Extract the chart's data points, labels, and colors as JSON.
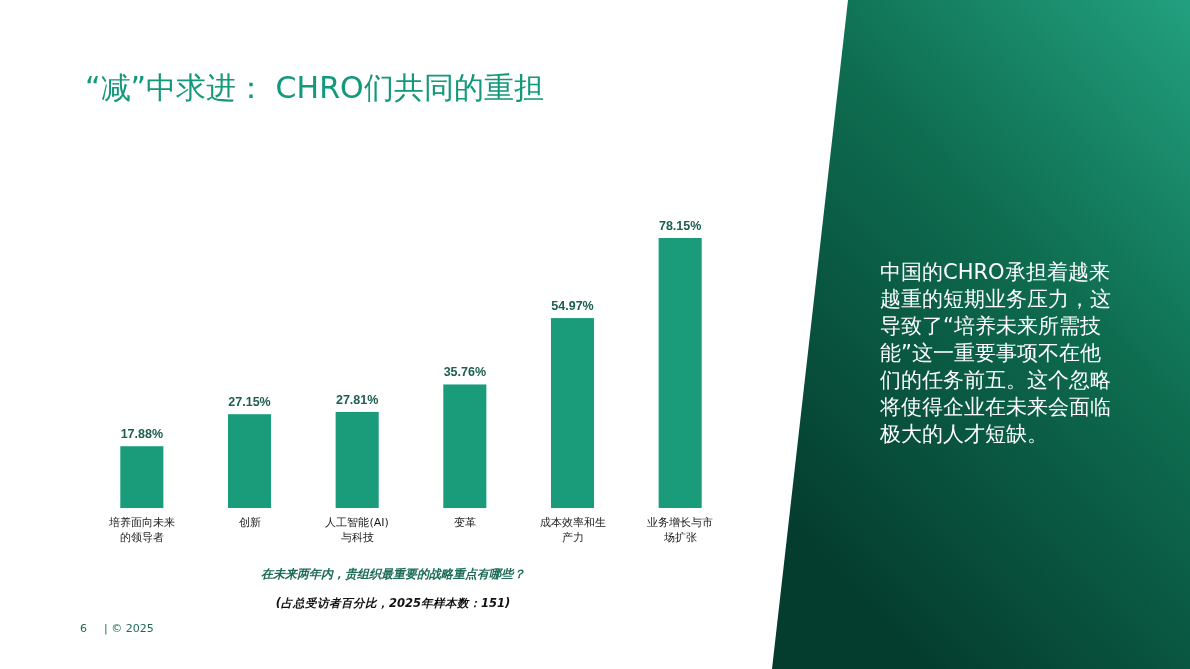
{
  "chart_data": {
    "type": "bar",
    "title": "“减”中求进： CHRO们共同的重担",
    "categories": [
      "培养面向未来的领导者",
      "创新",
      "人工智能(AI)与科技",
      "变革",
      "成本效率和生产力",
      "业务增长与市场扩张"
    ],
    "values": [
      17.88,
      27.15,
      27.81,
      35.76,
      54.97,
      78.15
    ],
    "value_labels": [
      "17.88%",
      "27.15%",
      "27.81%",
      "35.76%",
      "54.97%",
      "78.15%"
    ],
    "color": "#1a9c7b",
    "annotations": [
      "在未来两年内，贵组织最重要的战略重点有哪些？",
      "(占总受访者百分比，2025年样本数：151)",
      "中国的CHRO承担着越来越重的短期业务压力，这导致了“培养未来所需技能”这一重要事项不在他们的任务前五。这个忽略将使得企业在未来会面临极大的人才短缺。",
      "6",
      "| © 2025"
    ]
  }
}
